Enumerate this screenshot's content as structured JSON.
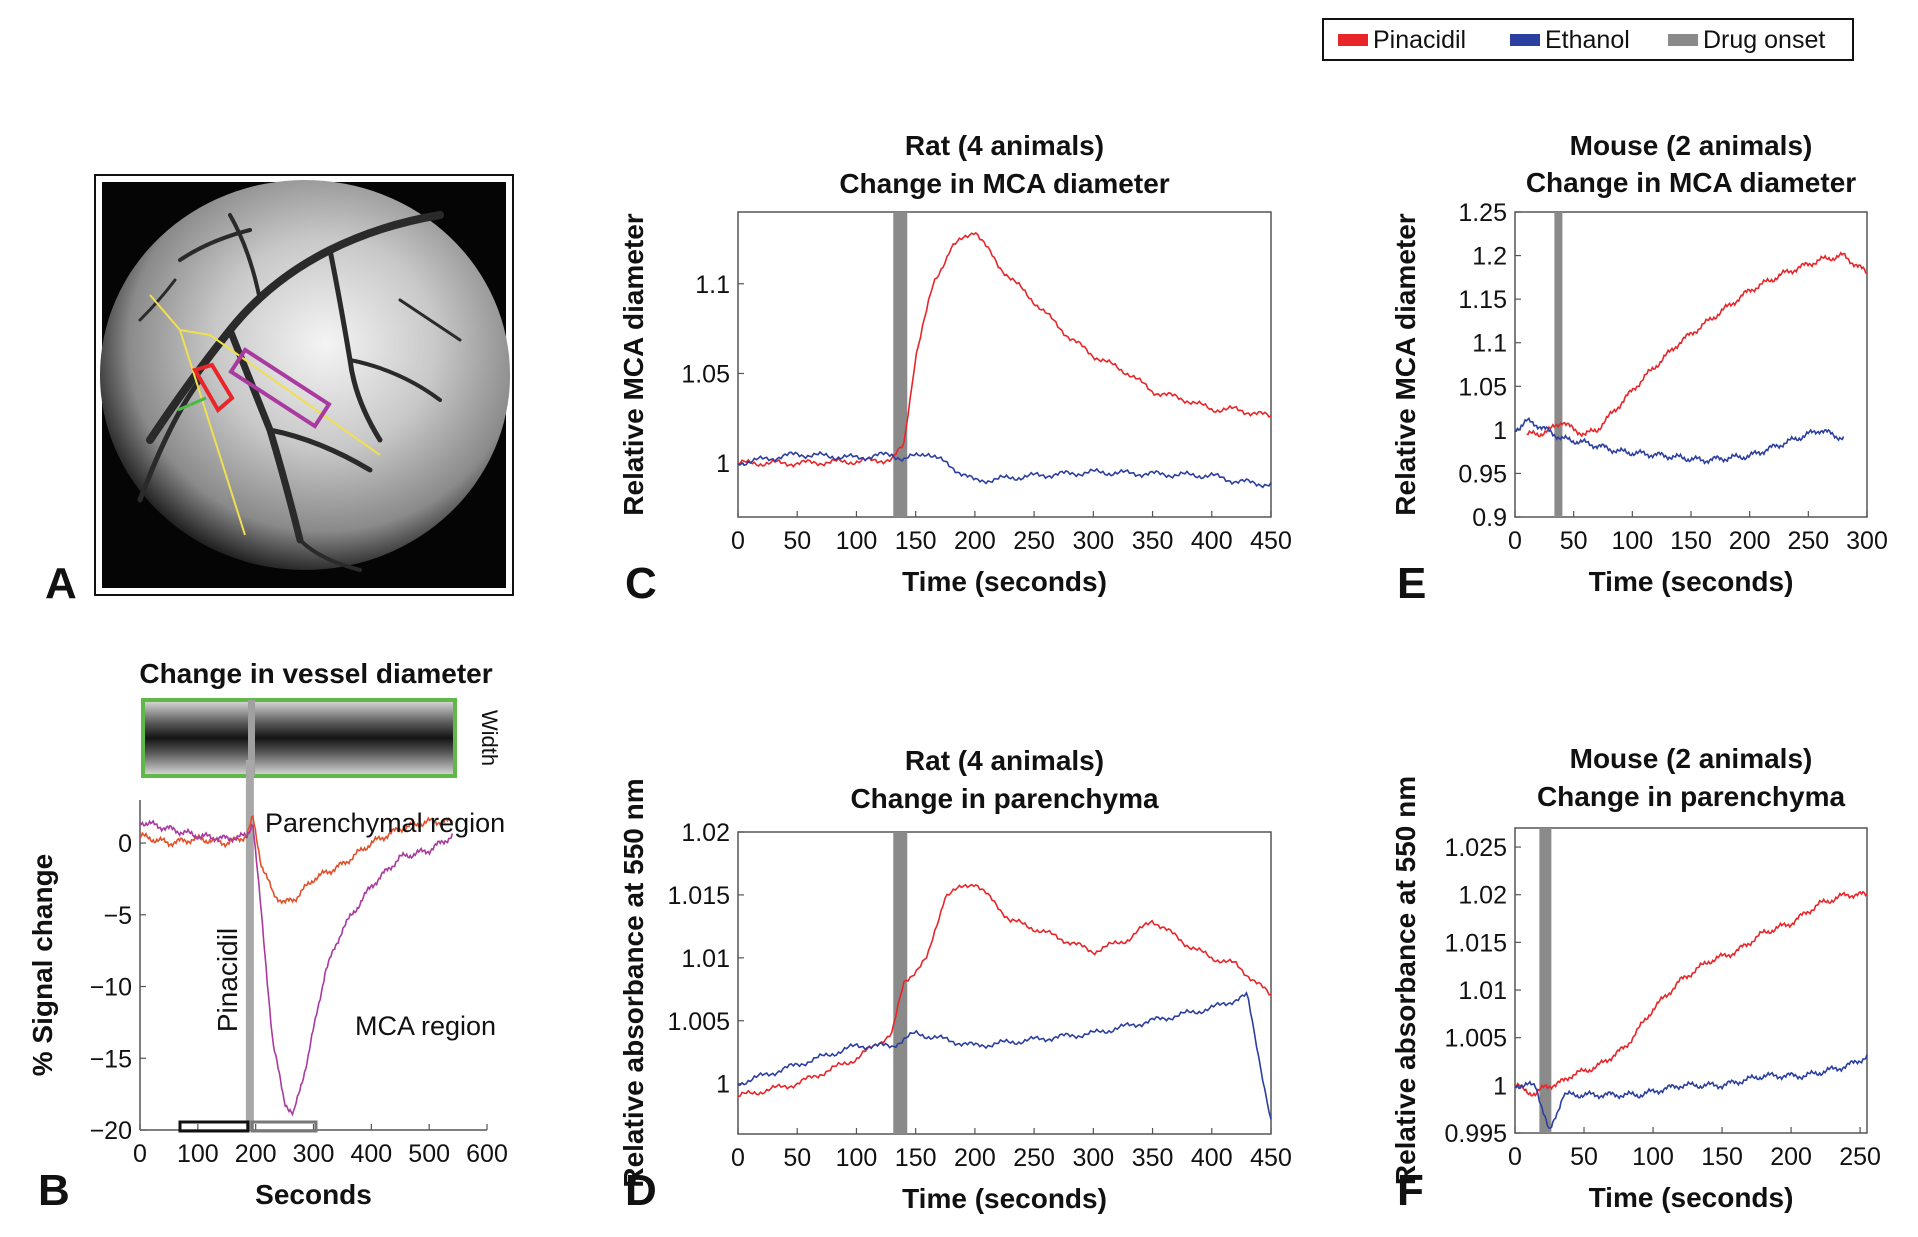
{
  "legend": {
    "items": [
      {
        "label": "Pinacidil",
        "color": "#e8262a"
      },
      {
        "label": "Ethanol",
        "color": "#2b3fa0"
      },
      {
        "label": "Drug onset",
        "color": "#8a8a8a"
      }
    ]
  },
  "colors": {
    "pinacidil": "#e8262a",
    "ethanol": "#2b3fa0",
    "onset": "#8a8a8a",
    "mca_region": "#a83aa0",
    "parenchymal_region": "#e2502a"
  },
  "panels": {
    "A": {
      "letter": "A"
    },
    "B": {
      "letter": "B",
      "title": "Change in vessel diameter",
      "strip_label": "Width",
      "drug_label": "Pinacidil"
    },
    "C": {
      "letter": "C"
    },
    "D": {
      "letter": "D"
    },
    "E": {
      "letter": "E"
    },
    "F": {
      "letter": "F"
    }
  },
  "chart_data": [
    {
      "id": "B",
      "type": "line",
      "xlabel": "Seconds",
      "ylabel": "% Signal change",
      "xlim": [
        0,
        600
      ],
      "ylim": [
        -20,
        3
      ],
      "xticks": [
        0,
        100,
        200,
        300,
        400,
        500,
        600
      ],
      "yticks": [
        0,
        -5,
        -10,
        -15,
        -20
      ],
      "onset": 190,
      "annotations": [
        "Parenchymal region",
        "MCA region"
      ],
      "series": [
        {
          "name": "Parenchymal region",
          "color": "#e2502a",
          "points": [
            [
              0,
              0.5
            ],
            [
              50,
              0
            ],
            [
              100,
              0.3
            ],
            [
              150,
              0
            ],
            [
              185,
              0.5
            ],
            [
              195,
              1.8
            ],
            [
              210,
              -1.5
            ],
            [
              230,
              -3.5
            ],
            [
              250,
              -4.2
            ],
            [
              270,
              -3.8
            ],
            [
              300,
              -2.5
            ],
            [
              350,
              -1.5
            ],
            [
              400,
              0
            ],
            [
              450,
              1
            ],
            [
              500,
              1.5
            ],
            [
              540,
              1.5
            ]
          ]
        },
        {
          "name": "MCA region",
          "color": "#a83aa0",
          "points": [
            [
              0,
              1.5
            ],
            [
              50,
              1
            ],
            [
              100,
              0.5
            ],
            [
              150,
              0.3
            ],
            [
              185,
              0.5
            ],
            [
              195,
              1.5
            ],
            [
              210,
              -5
            ],
            [
              230,
              -14
            ],
            [
              250,
              -18
            ],
            [
              265,
              -19
            ],
            [
              290,
              -15
            ],
            [
              320,
              -9
            ],
            [
              350,
              -6
            ],
            [
              400,
              -3
            ],
            [
              450,
              -1
            ],
            [
              500,
              -0.5
            ],
            [
              540,
              0.5
            ]
          ]
        }
      ]
    },
    {
      "id": "C",
      "type": "line",
      "title": "Rat (4 animals)",
      "subtitle": "Change in MCA diameter",
      "xlabel": "Time (seconds)",
      "ylabel": "Relative MCA diameter",
      "xlim": [
        0,
        450
      ],
      "ylim": [
        0.97,
        1.14
      ],
      "xticks": [
        0,
        50,
        100,
        150,
        200,
        250,
        300,
        350,
        400,
        450
      ],
      "yticks": [
        1,
        1.05,
        1.1
      ],
      "ytick_labels": [
        "1",
        "1.05",
        "1.1"
      ],
      "onset": 137,
      "series": [
        {
          "name": "Pinacidil",
          "color": "#e8262a",
          "points": [
            [
              0,
              1.0
            ],
            [
              50,
              1.0
            ],
            [
              100,
              1.001
            ],
            [
              130,
              1.002
            ],
            [
              140,
              1.01
            ],
            [
              150,
              1.06
            ],
            [
              165,
              1.1
            ],
            [
              180,
              1.12
            ],
            [
              200,
              1.13
            ],
            [
              220,
              1.11
            ],
            [
              250,
              1.09
            ],
            [
              280,
              1.07
            ],
            [
              300,
              1.06
            ],
            [
              330,
              1.05
            ],
            [
              350,
              1.04
            ],
            [
              380,
              1.035
            ],
            [
              400,
              1.03
            ],
            [
              420,
              1.03
            ],
            [
              450,
              1.026
            ]
          ]
        },
        {
          "name": "Ethanol",
          "color": "#2b3fa0",
          "points": [
            [
              0,
              1.0
            ],
            [
              50,
              1.005
            ],
            [
              100,
              1.003
            ],
            [
              130,
              1.005
            ],
            [
              140,
              1.002
            ],
            [
              160,
              1.006
            ],
            [
              180,
              0.998
            ],
            [
              200,
              0.99
            ],
            [
              250,
              0.993
            ],
            [
              300,
              0.995
            ],
            [
              350,
              0.994
            ],
            [
              400,
              0.993
            ],
            [
              420,
              0.99
            ],
            [
              450,
              0.988
            ]
          ]
        }
      ]
    },
    {
      "id": "D",
      "type": "line",
      "title": "Rat (4 animals)",
      "subtitle": "Change in parenchyma",
      "xlabel": "Time (seconds)",
      "ylabel": "Relative absorbance at 550 nm",
      "xlim": [
        0,
        450
      ],
      "ylim": [
        0.996,
        1.02
      ],
      "xticks": [
        0,
        50,
        100,
        150,
        200,
        250,
        300,
        350,
        400,
        450
      ],
      "yticks": [
        1,
        1.005,
        1.01,
        1.015,
        1.02
      ],
      "ytick_labels": [
        "1",
        "1.005",
        "1.01",
        "1.015",
        "1.02"
      ],
      "onset": 137,
      "series": [
        {
          "name": "Pinacidil",
          "color": "#e8262a",
          "points": [
            [
              0,
              0.999
            ],
            [
              50,
              1.0
            ],
            [
              100,
              1.002
            ],
            [
              130,
              1.004
            ],
            [
              140,
              1.008
            ],
            [
              150,
              1.009
            ],
            [
              160,
              1.01
            ],
            [
              175,
              1.015
            ],
            [
              200,
              1.016
            ],
            [
              230,
              1.013
            ],
            [
              260,
              1.012
            ],
            [
              300,
              1.0105
            ],
            [
              330,
              1.0115
            ],
            [
              350,
              1.013
            ],
            [
              380,
              1.011
            ],
            [
              400,
              1.01
            ],
            [
              420,
              1.0095
            ],
            [
              450,
              1.007
            ]
          ]
        },
        {
          "name": "Ethanol",
          "color": "#2b3fa0",
          "points": [
            [
              0,
              1.0
            ],
            [
              50,
              1.0015
            ],
            [
              100,
              1.003
            ],
            [
              130,
              1.003
            ],
            [
              150,
              1.004
            ],
            [
              200,
              1.003
            ],
            [
              250,
              1.0035
            ],
            [
              300,
              1.004
            ],
            [
              350,
              1.005
            ],
            [
              400,
              1.006
            ],
            [
              430,
              1.007
            ],
            [
              450,
              0.997
            ]
          ]
        }
      ]
    },
    {
      "id": "E",
      "type": "line",
      "title": "Mouse (2 animals)",
      "subtitle": "Change in MCA diameter",
      "xlabel": "Time (seconds)",
      "ylabel": "Relative MCA diameter",
      "xlim": [
        0,
        300
      ],
      "ylim": [
        0.9,
        1.25
      ],
      "xticks": [
        0,
        50,
        100,
        150,
        200,
        250,
        300
      ],
      "yticks": [
        0.9,
        0.95,
        1,
        1.05,
        1.1,
        1.15,
        1.2,
        1.25
      ],
      "ytick_labels": [
        "0.9",
        "0.95",
        "1",
        "1.05",
        "1.1",
        "1.15",
        "1.2",
        "1.25"
      ],
      "onset": 37,
      "series": [
        {
          "name": "Pinacidil",
          "color": "#e8262a",
          "points": [
            [
              10,
              0.995
            ],
            [
              20,
              0.995
            ],
            [
              30,
              1.0
            ],
            [
              40,
              1.01
            ],
            [
              50,
              1.0
            ],
            [
              60,
              0.995
            ],
            [
              70,
              1.0
            ],
            [
              90,
              1.03
            ],
            [
              110,
              1.06
            ],
            [
              140,
              1.1
            ],
            [
              170,
              1.13
            ],
            [
              200,
              1.16
            ],
            [
              230,
              1.18
            ],
            [
              260,
              1.195
            ],
            [
              280,
              1.2
            ],
            [
              300,
              1.18
            ]
          ]
        },
        {
          "name": "Ethanol",
          "color": "#2b3fa0",
          "points": [
            [
              0,
              1.0
            ],
            [
              10,
              1.01
            ],
            [
              20,
              1.005
            ],
            [
              40,
              0.99
            ],
            [
              60,
              0.985
            ],
            [
              90,
              0.975
            ],
            [
              130,
              0.97
            ],
            [
              160,
              0.965
            ],
            [
              200,
              0.97
            ],
            [
              230,
              0.985
            ],
            [
              260,
              1.0
            ],
            [
              280,
              0.99
            ]
          ]
        }
      ]
    },
    {
      "id": "F",
      "type": "line",
      "title": "Mouse (2 animals)",
      "subtitle": "Change in parenchyma",
      "xlabel": "Time (seconds)",
      "ylabel": "Relative absorbance at 550 nm",
      "xlim": [
        0,
        255
      ],
      "ylim": [
        0.995,
        1.027
      ],
      "xticks": [
        0,
        50,
        100,
        150,
        200,
        250
      ],
      "yticks": [
        0.995,
        1,
        1.005,
        1.01,
        1.015,
        1.02,
        1.025
      ],
      "ytick_labels": [
        "0.995",
        "1",
        "1.005",
        "1.01",
        "1.015",
        "1.02",
        "1.025"
      ],
      "onset": 22,
      "series": [
        {
          "name": "Pinacidil",
          "color": "#e8262a",
          "points": [
            [
              0,
              1.0
            ],
            [
              15,
              0.999
            ],
            [
              22,
              1.0
            ],
            [
              30,
              1.0
            ],
            [
              40,
              1.001
            ],
            [
              60,
              1.002
            ],
            [
              80,
              1.004
            ],
            [
              100,
              1.008
            ],
            [
              120,
              1.011
            ],
            [
              140,
              1.013
            ],
            [
              160,
              1.014
            ],
            [
              180,
              1.016
            ],
            [
              200,
              1.017
            ],
            [
              220,
              1.019
            ],
            [
              240,
              1.02
            ],
            [
              255,
              1.02
            ]
          ]
        },
        {
          "name": "Ethanol",
          "color": "#2b3fa0",
          "points": [
            [
              0,
              1.0
            ],
            [
              15,
              1.0
            ],
            [
              25,
              0.995
            ],
            [
              35,
              0.999
            ],
            [
              60,
              0.999
            ],
            [
              90,
              0.999
            ],
            [
              120,
              1.0
            ],
            [
              150,
              1.0
            ],
            [
              180,
              1.001
            ],
            [
              210,
              1.001
            ],
            [
              240,
              1.002
            ],
            [
              255,
              1.003
            ]
          ]
        }
      ]
    }
  ]
}
